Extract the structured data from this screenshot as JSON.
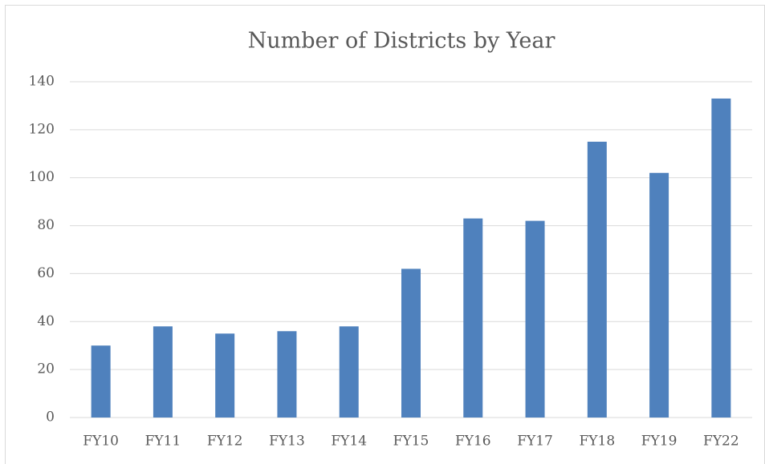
{
  "chart_data": {
    "type": "bar",
    "title": "Number of Districts by Year",
    "categories": [
      "FY10",
      "FY11",
      "FY12",
      "FY13",
      "FY14",
      "FY15",
      "FY16",
      "FY17",
      "FY18",
      "FY19",
      "FY22"
    ],
    "values": [
      30,
      38,
      35,
      36,
      38,
      62,
      83,
      82,
      115,
      102,
      133
    ],
    "color": "#4f81bd",
    "ylim": [
      0,
      140
    ],
    "yticks": [
      0,
      20,
      40,
      60,
      80,
      100,
      120,
      140
    ],
    "grid": true
  }
}
